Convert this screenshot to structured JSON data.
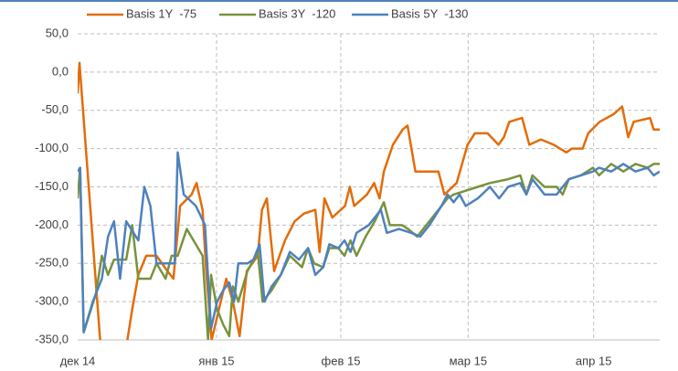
{
  "chart_data": {
    "type": "line",
    "ylim": [
      -350,
      50
    ],
    "yticks": [
      {
        "value": 50,
        "label": "50,0"
      },
      {
        "value": 0,
        "label": "0,0"
      },
      {
        "value": -50,
        "label": "-50,0"
      },
      {
        "value": -100,
        "label": "-100,0"
      },
      {
        "value": -150,
        "label": "-150,0"
      },
      {
        "value": -200,
        "label": "-200,0"
      },
      {
        "value": -250,
        "label": "-250,0"
      },
      {
        "value": -300,
        "label": "-300,0"
      },
      {
        "value": -350,
        "label": "-350,0"
      }
    ],
    "xlim": [
      0,
      96
    ],
    "xticks": [
      {
        "value": 0,
        "label": "дек 14"
      },
      {
        "value": 22.9,
        "label": "янв 15"
      },
      {
        "value": 43.4,
        "label": "фев 15"
      },
      {
        "value": 64.4,
        "label": "мар 15"
      },
      {
        "value": 85.1,
        "label": "апр 15"
      }
    ],
    "grid": true,
    "legend": "top",
    "series": [
      {
        "name": "Basis 1Y  -75",
        "color": "#e36c0a",
        "x": [
          0,
          0.3,
          3.8,
          8,
          9,
          10,
          11.3,
          13,
          14.8,
          15.8,
          16.9,
          18.8,
          19.6,
          20.6,
          21.2,
          22.1,
          23.3,
          24.5,
          25.6,
          26.7,
          27.9,
          29.7,
          30.4,
          31.2,
          32.4,
          34.2,
          35.8,
          37.3,
          39.2,
          39.9,
          40.7,
          42,
          44.1,
          44.9,
          45.6,
          47.7,
          48.9,
          49.8,
          50.5,
          52,
          53.6,
          54.4,
          55.7,
          59.5,
          60.5,
          62.5,
          64.3,
          65.5,
          67.6,
          69.4,
          70.3,
          71.2,
          73.3,
          74.5,
          76.4,
          78.5,
          80.6,
          81.5,
          83.3,
          84.2,
          86.1,
          88.4,
          89.8,
          90.8,
          91.7,
          94.4,
          95,
          96
        ],
        "values": [
          -28,
          12,
          -360,
          -360,
          -310,
          -265,
          -240,
          -240,
          -260,
          -270,
          -175,
          -160,
          -145,
          -180,
          -260,
          -350,
          -310,
          -270,
          -300,
          -345,
          -260,
          -240,
          -180,
          -165,
          -260,
          -220,
          -195,
          -185,
          -180,
          -235,
          -165,
          -190,
          -175,
          -150,
          -175,
          -160,
          -145,
          -165,
          -130,
          -95,
          -75,
          -70,
          -130,
          -130,
          -160,
          -145,
          -95,
          -80,
          -80,
          -95,
          -85,
          -65,
          -60,
          -95,
          -88,
          -95,
          -105,
          -100,
          -100,
          -80,
          -65,
          -55,
          -45,
          -85,
          -65,
          -60,
          -75,
          -75
        ]
      },
      {
        "name": "Basis 3Y  -120",
        "color": "#77933c",
        "x": [
          0,
          0.4,
          1,
          3,
          4,
          5,
          6,
          8,
          9,
          10,
          12,
          13,
          14.5,
          15.5,
          16.5,
          18,
          20.6,
          21.5,
          22,
          23,
          24,
          25,
          25.6,
          26.5,
          28,
          29.7,
          30.5,
          32,
          33.5,
          35,
          37,
          38,
          39,
          40.5,
          41.5,
          43,
          44,
          45,
          46,
          47.5,
          49,
          50.5,
          51.5,
          53.5,
          54.5,
          56,
          58,
          61,
          62,
          64,
          66,
          68,
          71,
          73,
          74,
          75,
          77,
          79,
          80,
          81,
          83,
          85,
          86,
          88,
          90,
          92,
          94,
          95,
          96
        ],
        "values": [
          -165,
          -125,
          -340,
          -290,
          -240,
          -265,
          -245,
          -245,
          -200,
          -270,
          -270,
          -250,
          -270,
          -240,
          -240,
          -205,
          -240,
          -350,
          -265,
          -310,
          -330,
          -345,
          -280,
          -300,
          -260,
          -235,
          -300,
          -285,
          -265,
          -240,
          -255,
          -230,
          -250,
          -255,
          -230,
          -230,
          -240,
          -220,
          -240,
          -215,
          -195,
          -170,
          -200,
          -200,
          -205,
          -215,
          -195,
          -165,
          -160,
          -155,
          -150,
          -145,
          -140,
          -135,
          -160,
          -135,
          -150,
          -150,
          -160,
          -140,
          -135,
          -125,
          -135,
          -120,
          -130,
          -120,
          -125,
          -120,
          -120
        ]
      },
      {
        "name": "Basis 5Y  -130",
        "color": "#4f81bd",
        "x": [
          0,
          0.4,
          1,
          2.5,
          4,
          5,
          6,
          7,
          8,
          10,
          11,
          12,
          13,
          14.5,
          16,
          16.5,
          17.5,
          19.5,
          21,
          22,
          23,
          24,
          25,
          25.8,
          26.5,
          28,
          29,
          30,
          30.8,
          32,
          33.5,
          35,
          36.5,
          38,
          39.2,
          40.5,
          41.5,
          43,
          44,
          45,
          46,
          48,
          50,
          51,
          53,
          55,
          56.5,
          58,
          60,
          61,
          62,
          63,
          64,
          66,
          68,
          69.5,
          71,
          73,
          74,
          75,
          77,
          79,
          80,
          81,
          83,
          85,
          86,
          88,
          90,
          92,
          94,
          95,
          96
        ],
        "values": [
          -130,
          -125,
          -340,
          -300,
          -270,
          -215,
          -195,
          -270,
          -195,
          -220,
          -150,
          -175,
          -250,
          -250,
          -250,
          -105,
          -160,
          -175,
          -200,
          -335,
          -300,
          -285,
          -275,
          -300,
          -250,
          -250,
          -245,
          -225,
          -300,
          -280,
          -265,
          -235,
          -245,
          -230,
          -265,
          -255,
          -225,
          -230,
          -220,
          -235,
          -210,
          -200,
          -180,
          -210,
          -205,
          -210,
          -215,
          -200,
          -175,
          -160,
          -170,
          -160,
          -175,
          -165,
          -150,
          -165,
          -150,
          -145,
          -160,
          -140,
          -160,
          -160,
          -150,
          -140,
          -135,
          -130,
          -125,
          -130,
          -120,
          -130,
          -125,
          -135,
          -130
        ]
      }
    ]
  }
}
